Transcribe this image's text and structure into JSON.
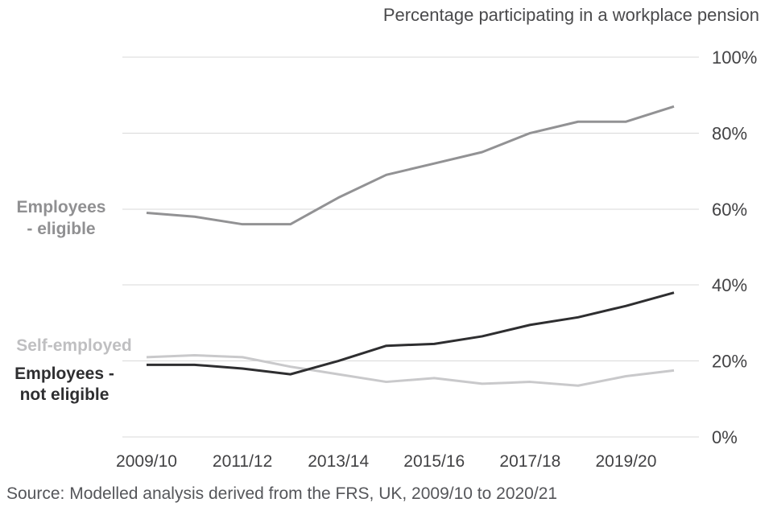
{
  "chart_data": {
    "type": "line",
    "title": "Percentage participating in a workplace pension",
    "source": "Source: Modelled analysis derived from the FRS, UK, 2009/10 to 2020/21",
    "categories": [
      "2009/10",
      "2010/11",
      "2011/12",
      "2012/13",
      "2013/14",
      "2014/15",
      "2015/16",
      "2016/17",
      "2017/18",
      "2018/19",
      "2019/20",
      "2020/21"
    ],
    "x_axis": {
      "tick_labels": [
        "2009/10",
        "2011/12",
        "2013/14",
        "2015/16",
        "2017/18",
        "2019/20"
      ]
    },
    "y_axis": {
      "ticks": [
        0,
        20,
        40,
        60,
        80,
        100
      ],
      "tick_labels": [
        "0%",
        "20%",
        "40%",
        "60%",
        "80%",
        "100%"
      ],
      "min": 0,
      "max": 100,
      "side": "right"
    },
    "grid": "horizontal",
    "legend_position": "left-labels-beside-lines",
    "series": [
      {
        "name": "Employees - eligible",
        "slug": "employees-eligible",
        "label": "Employees\n- eligible",
        "color": "#929294",
        "label_color": "#909092",
        "values": [
          59,
          58,
          56,
          56,
          63,
          69,
          72,
          75,
          80,
          83,
          83,
          87
        ]
      },
      {
        "name": "Self-employed",
        "slug": "self-employed",
        "label": "Self-employed",
        "color": "#c9c9cb",
        "label_color": "#bfbfc1",
        "values": [
          21,
          21.5,
          21,
          18.5,
          16.5,
          14.5,
          15.5,
          14,
          14.5,
          13.5,
          16,
          17.5
        ]
      },
      {
        "name": "Employees - not eligible",
        "slug": "employees-not-eligible",
        "label": "Employees -\nnot eligible",
        "color": "#2e2e30",
        "label_color": "#2e2e30",
        "values": [
          19,
          19,
          18,
          16.5,
          20,
          24,
          24.5,
          26.5,
          29.5,
          31.5,
          34.5,
          38
        ]
      }
    ]
  }
}
